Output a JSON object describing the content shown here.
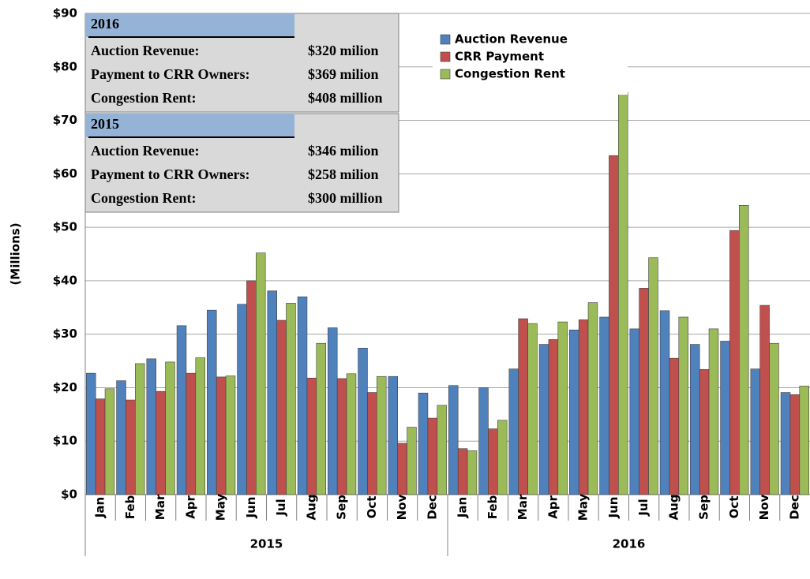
{
  "chart_data": {
    "type": "bar",
    "ylabel": "(Millions)",
    "groups": [
      {
        "name": "2015",
        "categories": [
          "Jan",
          "Feb",
          "Mar",
          "Apr",
          "May",
          "Jun",
          "Jul",
          "Aug",
          "Sep",
          "Oct",
          "Nov",
          "Dec"
        ]
      },
      {
        "name": "2016",
        "categories": [
          "Jan",
          "Feb",
          "Mar",
          "Apr",
          "May",
          "Jun",
          "Jul",
          "Aug",
          "Sep",
          "Oct",
          "Nov",
          "Dec"
        ]
      }
    ],
    "series": [
      {
        "name": "Auction Revenue",
        "color": "#4f81bd",
        "values": [
          22.7,
          21.3,
          25.4,
          31.6,
          34.5,
          35.6,
          38.1,
          37.0,
          31.2,
          27.4,
          22.1,
          19.0,
          20.4,
          20.0,
          23.5,
          28.1,
          30.8,
          33.2,
          31.0,
          34.4,
          28.1,
          28.7,
          23.5,
          19.1
        ]
      },
      {
        "name": "CRR Payment",
        "color": "#c0504d",
        "values": [
          17.9,
          17.7,
          19.3,
          22.7,
          22.0,
          40.0,
          32.6,
          21.8,
          21.7,
          19.1,
          9.6,
          14.3,
          8.6,
          12.3,
          32.9,
          29.0,
          32.7,
          63.4,
          38.6,
          25.5,
          23.4,
          49.4,
          35.4,
          18.7
        ]
      },
      {
        "name": "Congestion Rent",
        "color": "#9bbb59",
        "values": [
          19.8,
          24.5,
          24.8,
          25.6,
          22.2,
          45.2,
          35.8,
          28.3,
          22.6,
          22.1,
          12.6,
          16.7,
          8.2,
          13.9,
          32.0,
          32.3,
          35.9,
          75.3,
          44.3,
          33.2,
          31.0,
          54.1,
          28.3,
          20.3
        ]
      }
    ],
    "ylim": [
      0,
      90
    ],
    "yticks": [
      {
        "value": 0,
        "label": "$0"
      },
      {
        "value": 10,
        "label": "$10"
      },
      {
        "value": 20,
        "label": "$20"
      },
      {
        "value": 30,
        "label": "$30"
      },
      {
        "value": 40,
        "label": "$40"
      },
      {
        "value": 50,
        "label": "$50"
      },
      {
        "value": 60,
        "label": "$60"
      },
      {
        "value": 70,
        "label": "$70"
      },
      {
        "value": 80,
        "label": "$80"
      },
      {
        "value": 90,
        "label": "$90"
      }
    ],
    "grid": true,
    "annotations": [
      {
        "title": "2016",
        "rows": [
          [
            "Auction Revenue:",
            "$320 milion"
          ],
          [
            "Payment to CRR Owners:",
            "$369 milion"
          ],
          [
            "Congestion Rent:",
            "$408 million"
          ]
        ]
      },
      {
        "title": "2015",
        "rows": [
          [
            "Auction Revenue:",
            "$346 milion"
          ],
          [
            "Payment to CRR Owners:",
            "$258 milion"
          ],
          [
            "Congestion Rent:",
            "$300 million"
          ]
        ]
      }
    ]
  }
}
